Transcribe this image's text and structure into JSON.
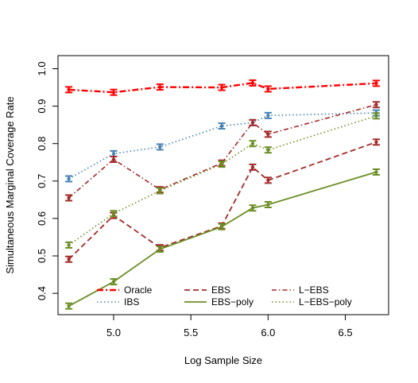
{
  "chart_data": {
    "type": "line",
    "xlabel": "Log Sample Size",
    "ylabel": "Simultaneous Marginal Coverage Rate",
    "xlim": [
      4.64,
      6.78
    ],
    "ylim": [
      0.343,
      1.035
    ],
    "x_ticks": [
      5.0,
      5.5,
      6.0,
      6.5
    ],
    "x_tick_labels": [
      "5.0",
      "5.5",
      "6.0",
      "6.5"
    ],
    "y_ticks": [
      0.4,
      0.5,
      0.6,
      0.7,
      0.8,
      0.9,
      1.0
    ],
    "y_tick_labels": [
      "0.4",
      "0.5",
      "0.6",
      "0.7",
      "0.8",
      "0.9",
      "1.0"
    ],
    "x": [
      4.71,
      5.0,
      5.3,
      5.7,
      5.9,
      6.0,
      6.7
    ],
    "series": [
      {
        "name": "Oracle",
        "color": "#ff0000",
        "dash": "8,3,2,3",
        "width": 2.4,
        "values": [
          0.944,
          0.937,
          0.951,
          0.95,
          0.962,
          0.946,
          0.961
        ]
      },
      {
        "name": "IBS",
        "color": "#4682b4",
        "dash": "1.5,3",
        "width": 1.6,
        "values": [
          0.706,
          0.773,
          0.791,
          0.847,
          0.856,
          0.875,
          0.882
        ]
      },
      {
        "name": "EBS",
        "color": "#a52a2a",
        "dash": "7,4",
        "width": 1.8,
        "values": [
          0.491,
          0.608,
          0.522,
          0.58,
          0.737,
          0.702,
          0.804
        ]
      },
      {
        "name": "EBS−poly",
        "color": "#6b8e23",
        "dash": "",
        "width": 1.8,
        "values": [
          0.366,
          0.431,
          0.518,
          0.578,
          0.628,
          0.637,
          0.724
        ]
      },
      {
        "name": "L−EBS",
        "color": "#a52a2a",
        "dash": "6,3,1.5,3",
        "width": 1.6,
        "values": [
          0.655,
          0.758,
          0.677,
          0.748,
          0.856,
          0.825,
          0.904
        ]
      },
      {
        "name": "L−EBS−poly",
        "color": "#6b8e23",
        "dash": "1.5,3",
        "width": 1.6,
        "values": [
          0.529,
          0.613,
          0.674,
          0.745,
          0.8,
          0.783,
          0.874
        ]
      }
    ],
    "legend_placement": "bottom",
    "grid": false
  }
}
